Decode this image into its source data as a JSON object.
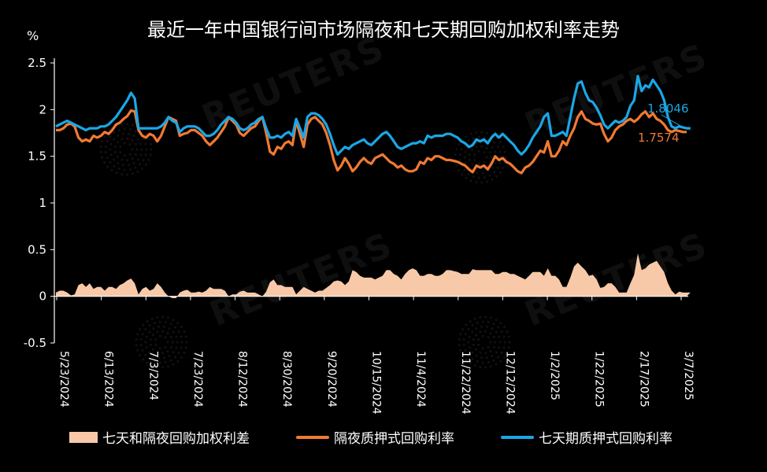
{
  "title": "最近一年中国银行间市场隔夜和七天期回购加权利率走势",
  "unit_label": "%",
  "watermark_text": "REUTERS",
  "colors": {
    "background": "#000000",
    "overnight": "#f07a32",
    "seven_day": "#1aa7e6",
    "spread": "#f8c9a8",
    "axis": "#ffffff"
  },
  "legend": {
    "spread": "七天和隔夜回购加权利差",
    "overnight": "隔夜质押式回购利率",
    "seven_day": "七天期质押式回购利率"
  },
  "chart_data": {
    "type": "line",
    "ylim": [
      -0.5,
      2.5
    ],
    "y_ticks": [
      "2.5",
      "2",
      "1.5",
      "1",
      "0.5",
      "0",
      "-0.5"
    ],
    "y_tick_values": [
      2.5,
      2,
      1.5,
      1,
      0.5,
      0,
      -0.5
    ],
    "x_tick_labels": [
      "5/23/2024",
      "6/13/2024",
      "7/3/2024",
      "7/23/2024",
      "8/12/2024",
      "8/30/2024",
      "9/20/2024",
      "10/15/2024",
      "11/4/2024",
      "11/22/2024",
      "12/12/2024",
      "1/2/2025",
      "1/22/2025",
      "2/17/2025",
      "3/7/2025"
    ],
    "end_labels": {
      "seven_day": "1.8046",
      "overnight": "1.7574"
    },
    "series": [
      {
        "key": "overnight",
        "name": "隔夜质押式回购利率",
        "type": "line",
        "values": [
          1.78,
          1.78,
          1.8,
          1.84,
          1.85,
          1.82,
          1.7,
          1.66,
          1.68,
          1.66,
          1.72,
          1.7,
          1.72,
          1.76,
          1.74,
          1.78,
          1.84,
          1.86,
          1.9,
          1.93,
          1.99,
          1.98,
          1.78,
          1.72,
          1.7,
          1.74,
          1.72,
          1.66,
          1.72,
          1.82,
          1.92,
          1.9,
          1.88,
          1.72,
          1.74,
          1.75,
          1.78,
          1.78,
          1.75,
          1.72,
          1.66,
          1.62,
          1.66,
          1.7,
          1.76,
          1.82,
          1.92,
          1.88,
          1.84,
          1.75,
          1.72,
          1.76,
          1.8,
          1.82,
          1.88,
          1.92,
          1.75,
          1.55,
          1.52,
          1.6,
          1.58,
          1.64,
          1.66,
          1.62,
          1.88,
          1.74,
          1.6,
          1.84,
          1.9,
          1.92,
          1.88,
          1.84,
          1.75,
          1.62,
          1.46,
          1.35,
          1.4,
          1.48,
          1.42,
          1.34,
          1.38,
          1.44,
          1.48,
          1.44,
          1.42,
          1.48,
          1.5,
          1.52,
          1.48,
          1.44,
          1.42,
          1.38,
          1.4,
          1.36,
          1.34,
          1.34,
          1.36,
          1.44,
          1.42,
          1.48,
          1.46,
          1.5,
          1.5,
          1.48,
          1.46,
          1.46,
          1.45,
          1.44,
          1.42,
          1.4,
          1.36,
          1.33,
          1.4,
          1.38,
          1.4,
          1.36,
          1.42,
          1.5,
          1.46,
          1.48,
          1.44,
          1.42,
          1.38,
          1.34,
          1.32,
          1.38,
          1.4,
          1.44,
          1.5,
          1.56,
          1.54,
          1.66,
          1.5,
          1.5,
          1.56,
          1.66,
          1.62,
          1.72,
          1.8,
          1.92,
          1.98,
          1.9,
          1.88,
          1.85,
          1.84,
          1.85,
          1.74,
          1.66,
          1.7,
          1.78,
          1.82,
          1.84,
          1.88,
          1.9,
          1.87,
          1.9,
          1.95,
          1.98,
          1.92,
          1.96,
          1.9,
          1.88,
          1.84,
          1.78,
          1.76,
          1.78,
          1.77,
          1.76,
          1.76
        ]
      },
      {
        "key": "seven_day",
        "name": "七天期质押式回购利率",
        "type": "line",
        "values": [
          1.82,
          1.84,
          1.86,
          1.88,
          1.86,
          1.84,
          1.82,
          1.8,
          1.78,
          1.8,
          1.8,
          1.8,
          1.82,
          1.82,
          1.84,
          1.88,
          1.92,
          1.98,
          2.04,
          2.1,
          2.18,
          2.12,
          1.8,
          1.8,
          1.8,
          1.8,
          1.8,
          1.8,
          1.82,
          1.86,
          1.92,
          1.88,
          1.86,
          1.76,
          1.8,
          1.82,
          1.82,
          1.82,
          1.8,
          1.76,
          1.72,
          1.72,
          1.74,
          1.78,
          1.84,
          1.88,
          1.92,
          1.9,
          1.86,
          1.8,
          1.78,
          1.8,
          1.84,
          1.86,
          1.9,
          1.92,
          1.8,
          1.7,
          1.7,
          1.72,
          1.7,
          1.74,
          1.76,
          1.72,
          1.9,
          1.8,
          1.7,
          1.92,
          1.96,
          1.96,
          1.94,
          1.9,
          1.84,
          1.74,
          1.62,
          1.52,
          1.56,
          1.6,
          1.58,
          1.62,
          1.64,
          1.66,
          1.68,
          1.64,
          1.62,
          1.66,
          1.7,
          1.74,
          1.76,
          1.72,
          1.66,
          1.6,
          1.58,
          1.6,
          1.62,
          1.64,
          1.64,
          1.66,
          1.64,
          1.72,
          1.7,
          1.72,
          1.72,
          1.72,
          1.74,
          1.74,
          1.72,
          1.7,
          1.66,
          1.64,
          1.6,
          1.62,
          1.68,
          1.66,
          1.68,
          1.64,
          1.7,
          1.74,
          1.7,
          1.74,
          1.7,
          1.66,
          1.62,
          1.56,
          1.52,
          1.56,
          1.62,
          1.7,
          1.76,
          1.82,
          1.92,
          1.96,
          1.72,
          1.72,
          1.74,
          1.76,
          1.72,
          1.92,
          2.12,
          2.28,
          2.3,
          2.18,
          2.1,
          2.08,
          2.02,
          1.94,
          1.84,
          1.8,
          1.84,
          1.88,
          1.86,
          1.88,
          1.92,
          2.04,
          2.1,
          2.36,
          2.2,
          2.26,
          2.24,
          2.32,
          2.26,
          2.2,
          2.1,
          1.92,
          1.82,
          1.8,
          1.82,
          1.81,
          1.8,
          1.8
        ]
      },
      {
        "key": "spread",
        "name": "七天和隔夜回购加权利差",
        "type": "area",
        "values": [
          0.04,
          0.06,
          0.06,
          0.04,
          0.01,
          0.02,
          0.12,
          0.14,
          0.1,
          0.14,
          0.08,
          0.1,
          0.1,
          0.06,
          0.1,
          0.1,
          0.08,
          0.12,
          0.14,
          0.17,
          0.19,
          0.14,
          0.02,
          0.08,
          0.1,
          0.06,
          0.08,
          0.14,
          0.1,
          0.04,
          0,
          -0.02,
          -0.02,
          0.04,
          0.06,
          0.07,
          0.04,
          0.04,
          0.05,
          0.04,
          0.06,
          0.1,
          0.08,
          0.08,
          0.08,
          0.06,
          0,
          0.02,
          0.02,
          0.05,
          0.06,
          0.04,
          0.04,
          0.04,
          0.02,
          0,
          0.05,
          0.15,
          0.18,
          0.12,
          0.12,
          0.1,
          0.1,
          0.1,
          0.02,
          0.06,
          0.1,
          0.08,
          0.06,
          0.04,
          0.06,
          0.06,
          0.09,
          0.12,
          0.16,
          0.17,
          0.16,
          0.12,
          0.16,
          0.28,
          0.26,
          0.22,
          0.2,
          0.2,
          0.2,
          0.18,
          0.2,
          0.22,
          0.28,
          0.28,
          0.24,
          0.22,
          0.18,
          0.24,
          0.28,
          0.3,
          0.28,
          0.22,
          0.22,
          0.24,
          0.24,
          0.22,
          0.22,
          0.24,
          0.28,
          0.28,
          0.27,
          0.26,
          0.24,
          0.24,
          0.24,
          0.29,
          0.28,
          0.28,
          0.28,
          0.28,
          0.28,
          0.24,
          0.24,
          0.26,
          0.26,
          0.24,
          0.24,
          0.22,
          0.2,
          0.18,
          0.22,
          0.26,
          0.26,
          0.26,
          0.22,
          0.3,
          0.22,
          0.22,
          0.18,
          0.1,
          0.1,
          0.2,
          0.32,
          0.36,
          0.32,
          0.28,
          0.22,
          0.23,
          0.18,
          0.09,
          0.1,
          0.14,
          0.14,
          0.1,
          0.04,
          0.04,
          0.04,
          0.14,
          0.23,
          0.46,
          0.28,
          0.3,
          0.34,
          0.36,
          0.38,
          0.32,
          0.26,
          0.14,
          0.06,
          0.02,
          0.05,
          0.04,
          0.04,
          0.04
        ]
      }
    ]
  }
}
